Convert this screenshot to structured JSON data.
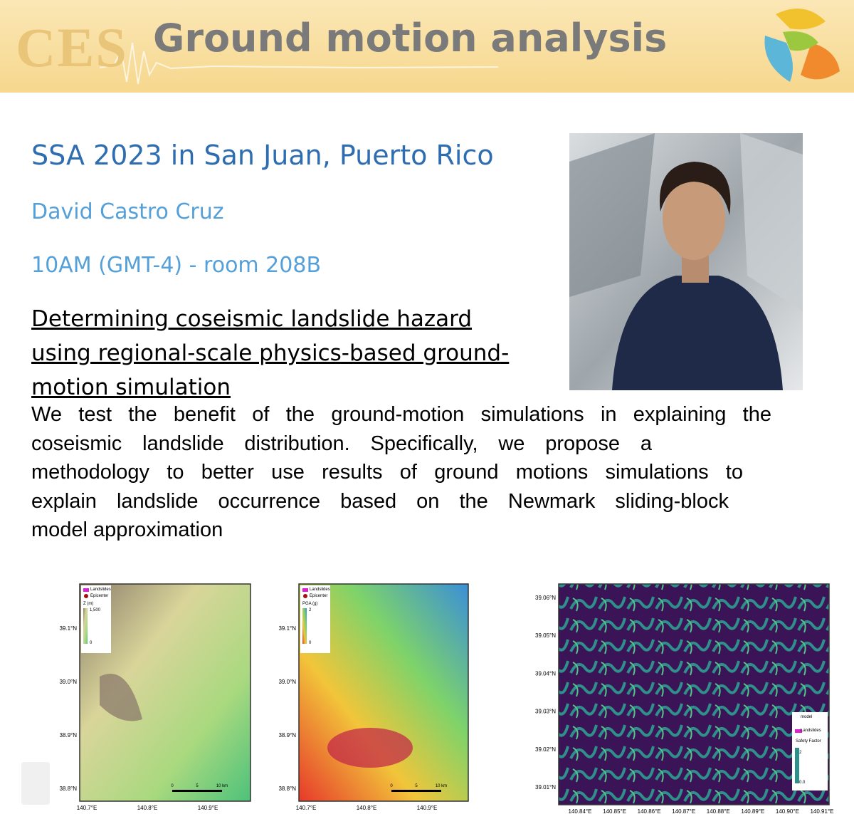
{
  "header": {
    "logo_text": "CES",
    "title": "Ground motion analysis"
  },
  "talk": {
    "heading": "SSA 2023 in San Juan, Puerto Rico",
    "speaker": "David Castro Cruz",
    "time": "10AM (GMT-4) - room 208B",
    "title_lines": [
      "Determining coseismic landslide hazard",
      "using regional-scale physics-based ground-",
      "motion simulation"
    ],
    "abstract_lines": [
      "We test the benefit of the ground-motion simulations in explaining the",
      "coseismic landslide distribution. Specifically, we propose a",
      "methodology to better use results of ground motions simulations to",
      "explain landslide occurrence based on the Newmark sliding-block",
      "model approximation"
    ]
  },
  "maps": [
    {
      "legend": [
        "Landslides",
        "Epicenter",
        "Z (m)",
        "1,500",
        "0"
      ],
      "yticks": [
        "39.1°N",
        "39.0°N",
        "38.9°N",
        "38.8°N"
      ],
      "xticks": [
        "140.7°E",
        "140.8°E",
        "140.9°E"
      ],
      "scale": [
        "0",
        "5",
        "10 km"
      ]
    },
    {
      "legend": [
        "Landslides",
        "Epicenter",
        "PGA (g)",
        "2",
        "0"
      ],
      "yticks": [
        "39.1°N",
        "39.0°N",
        "38.9°N",
        "38.8°N"
      ],
      "xticks": [
        "140.7°E",
        "140.8°E",
        "140.9°E"
      ],
      "scale": [
        "0",
        "5",
        "10 km"
      ]
    },
    {
      "legend": [
        "model",
        "Landslides",
        "Safety Factor",
        "2",
        "0.0"
      ],
      "yticks": [
        "39.06°N",
        "39.05°N",
        "39.04°N",
        "39.03°N",
        "39.02°N",
        "39.01°N"
      ],
      "xticks": [
        "140.84°E",
        "140.85°E",
        "140.86°E",
        "140.87°E",
        "140.88°E",
        "140.89°E",
        "140.90°E",
        "140.91°E"
      ],
      "scale": []
    }
  ]
}
